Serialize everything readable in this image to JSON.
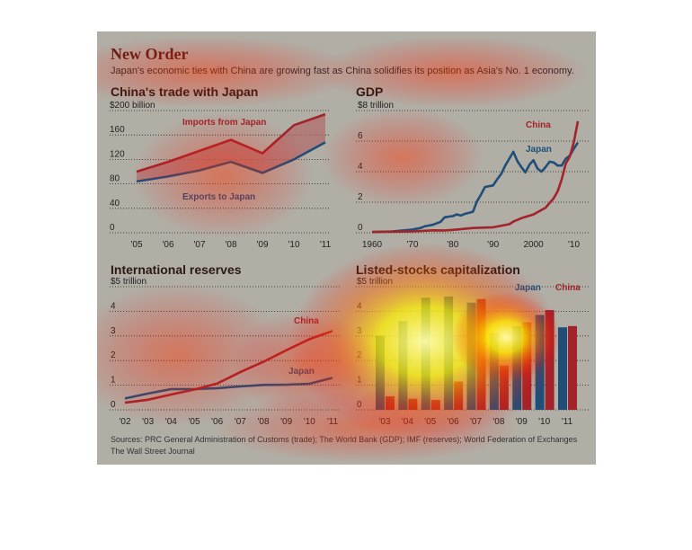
{
  "header": {
    "title": "New Order",
    "subtitle": "Japan's economic ties with China are growing fast as China solidifies its position as Asia's No. 1 economy."
  },
  "footer": {
    "sources": "Sources: PRC General Administration of Customs (trade); The World Bank (GDP); IMF (reserves); World Federation of Exchanges",
    "credit": "The Wall Street Journal"
  },
  "colors": {
    "china": "#a3232a",
    "japan": "#1f4e79",
    "grid": "#222222",
    "fill": "#b0686a"
  },
  "chart_data": [
    {
      "type": "line",
      "title": "China's trade with Japan",
      "x": [
        "'05",
        "'06",
        "'07",
        "'08",
        "'09",
        "'10",
        "'11"
      ],
      "ylim": [
        0,
        200
      ],
      "yticks": [
        "0",
        "40",
        "80",
        "120",
        "160",
        "$200 billion"
      ],
      "series": [
        {
          "name": "Imports from Japan",
          "values": [
            100,
            116,
            134,
            152,
            130,
            176,
            194
          ]
        },
        {
          "name": "Exports to Japan",
          "values": [
            84,
            92,
            102,
            116,
            98,
            120,
            148
          ]
        }
      ],
      "fill_between": true
    },
    {
      "type": "line",
      "title": "GDP",
      "xlim": [
        1960,
        2011
      ],
      "xticks": [
        "1960",
        "'70",
        "'80",
        "'90",
        "2000",
        "'10"
      ],
      "ylim": [
        0,
        8
      ],
      "yticks": [
        "0",
        "2",
        "4",
        "6",
        "$8 trillion"
      ],
      "series": [
        {
          "name": "China",
          "points": [
            [
              1960,
              0.06
            ],
            [
              1965,
              0.07
            ],
            [
              1970,
              0.09
            ],
            [
              1975,
              0.16
            ],
            [
              1978,
              0.15
            ],
            [
              1980,
              0.19
            ],
            [
              1985,
              0.31
            ],
            [
              1990,
              0.36
            ],
            [
              1994,
              0.56
            ],
            [
              1995,
              0.73
            ],
            [
              1997,
              0.95
            ],
            [
              2000,
              1.2
            ],
            [
              2003,
              1.64
            ],
            [
              2005,
              2.26
            ],
            [
              2006,
              2.71
            ],
            [
              2007,
              3.49
            ],
            [
              2008,
              4.52
            ],
            [
              2009,
              4.99
            ],
            [
              2010,
              5.93
            ],
            [
              2011,
              7.3
            ]
          ]
        },
        {
          "name": "Japan",
          "points": [
            [
              1960,
              0.04
            ],
            [
              1965,
              0.09
            ],
            [
              1970,
              0.21
            ],
            [
              1972,
              0.31
            ],
            [
              1973,
              0.42
            ],
            [
              1974,
              0.47
            ],
            [
              1975,
              0.52
            ],
            [
              1977,
              0.72
            ],
            [
              1978,
              1.01
            ],
            [
              1979,
              1.06
            ],
            [
              1980,
              1.09
            ],
            [
              1981,
              1.2
            ],
            [
              1982,
              1.13
            ],
            [
              1983,
              1.24
            ],
            [
              1984,
              1.3
            ],
            [
              1985,
              1.38
            ],
            [
              1986,
              2.05
            ],
            [
              1987,
              2.5
            ],
            [
              1988,
              3.0
            ],
            [
              1989,
              3.05
            ],
            [
              1990,
              3.1
            ],
            [
              1991,
              3.5
            ],
            [
              1992,
              3.85
            ],
            [
              1993,
              4.4
            ],
            [
              1994,
              4.85
            ],
            [
              1995,
              5.3
            ],
            [
              1996,
              4.7
            ],
            [
              1997,
              4.3
            ],
            [
              1998,
              3.95
            ],
            [
              1999,
              4.45
            ],
            [
              2000,
              4.75
            ],
            [
              2001,
              4.2
            ],
            [
              2002,
              4.0
            ],
            [
              2003,
              4.3
            ],
            [
              2004,
              4.65
            ],
            [
              2005,
              4.6
            ],
            [
              2006,
              4.4
            ],
            [
              2007,
              4.4
            ],
            [
              2008,
              4.85
            ],
            [
              2009,
              5.05
            ],
            [
              2010,
              5.5
            ],
            [
              2011,
              5.9
            ]
          ]
        }
      ]
    },
    {
      "type": "line",
      "title": "International reserves",
      "x": [
        "'02",
        "'03",
        "'04",
        "'05",
        "'06",
        "'07",
        "'08",
        "'09",
        "'10",
        "'11"
      ],
      "ylim": [
        0,
        5
      ],
      "yticks": [
        "0",
        "1",
        "2",
        "3",
        "4",
        "$5 trillion"
      ],
      "series": [
        {
          "name": "China",
          "values": [
            0.29,
            0.41,
            0.62,
            0.82,
            1.07,
            1.53,
            1.95,
            2.42,
            2.87,
            3.2
          ]
        },
        {
          "name": "Japan",
          "values": [
            0.46,
            0.66,
            0.84,
            0.84,
            0.88,
            0.95,
            1.01,
            1.02,
            1.06,
            1.3
          ]
        }
      ]
    },
    {
      "type": "bar",
      "title": "Listed-stocks capitalization",
      "categories": [
        "'03",
        "'04",
        "'05",
        "'06",
        "'07",
        "'08",
        "'09",
        "'10",
        "'11"
      ],
      "ylim": [
        0,
        5
      ],
      "yticks": [
        "0",
        "1",
        "2",
        "3",
        "4",
        "$5 trillion"
      ],
      "series": [
        {
          "name": "Japan",
          "values": [
            3.0,
            3.6,
            4.55,
            4.6,
            4.35,
            3.1,
            3.4,
            3.85,
            3.35
          ]
        },
        {
          "name": "China",
          "values": [
            0.55,
            0.45,
            0.4,
            1.15,
            4.5,
            1.8,
            3.55,
            4.05,
            3.4
          ]
        }
      ]
    }
  ]
}
